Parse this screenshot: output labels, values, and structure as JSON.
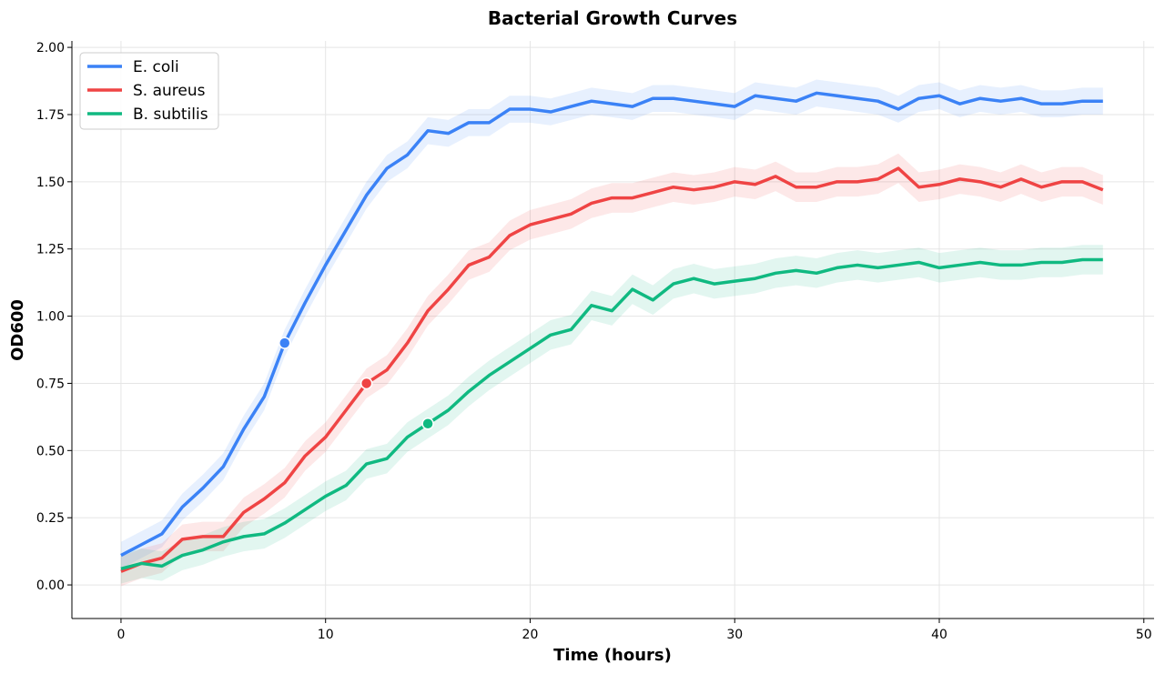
{
  "chart_data": {
    "type": "line",
    "title": "Bacterial Growth Curves",
    "xlabel": "Time (hours)",
    "ylabel": "OD600",
    "xlim": [
      -2.4,
      50.5
    ],
    "ylim": [
      -0.125,
      2.024
    ],
    "xticks": [
      0,
      10,
      20,
      30,
      40,
      50
    ],
    "xtick_labels": [
      "0",
      "10",
      "20",
      "30",
      "40",
      "50"
    ],
    "yticks": [
      0,
      0.25,
      0.5,
      0.75,
      1.0,
      1.25,
      1.5,
      1.75,
      2.0
    ],
    "ytick_labels": [
      "0.00",
      "0.25",
      "0.50",
      "0.75",
      "1.00",
      "1.25",
      "1.50",
      "1.75",
      "2.00"
    ],
    "grid": true,
    "legend_position": "top-left",
    "x": [
      0,
      1,
      2,
      3,
      4,
      5,
      6,
      7,
      8,
      9,
      10,
      11,
      12,
      13,
      14,
      15,
      16,
      17,
      18,
      19,
      20,
      21,
      22,
      23,
      24,
      25,
      26,
      27,
      28,
      29,
      30,
      31,
      32,
      33,
      34,
      35,
      36,
      37,
      38,
      39,
      40,
      41,
      42,
      43,
      44,
      45,
      46,
      47,
      48
    ],
    "series": [
      {
        "name": "E. coli",
        "color": "#3b82f6",
        "ci_halfwidth": 0.05,
        "values": [
          0.11,
          0.15,
          0.19,
          0.29,
          0.36,
          0.44,
          0.58,
          0.7,
          0.9,
          1.05,
          1.19,
          1.32,
          1.45,
          1.55,
          1.6,
          1.69,
          1.68,
          1.72,
          1.72,
          1.77,
          1.77,
          1.76,
          1.78,
          1.8,
          1.79,
          1.78,
          1.81,
          1.81,
          1.8,
          1.79,
          1.78,
          1.82,
          1.81,
          1.8,
          1.83,
          1.82,
          1.81,
          1.8,
          1.77,
          1.81,
          1.82,
          1.79,
          1.81,
          1.8,
          1.81,
          1.79,
          1.79,
          1.8,
          1.8
        ],
        "marker": {
          "x": 8,
          "y": 0.9
        }
      },
      {
        "name": "S. aureus",
        "color": "#ef4444",
        "ci_halfwidth": 0.055,
        "values": [
          0.05,
          0.08,
          0.1,
          0.17,
          0.18,
          0.18,
          0.27,
          0.32,
          0.38,
          0.48,
          0.55,
          0.65,
          0.75,
          0.8,
          0.9,
          1.02,
          1.1,
          1.19,
          1.22,
          1.3,
          1.34,
          1.36,
          1.38,
          1.42,
          1.44,
          1.44,
          1.46,
          1.48,
          1.47,
          1.48,
          1.5,
          1.49,
          1.52,
          1.48,
          1.48,
          1.5,
          1.5,
          1.51,
          1.55,
          1.48,
          1.49,
          1.51,
          1.5,
          1.48,
          1.51,
          1.48,
          1.5,
          1.5,
          1.47
        ],
        "marker": {
          "x": 12,
          "y": 0.75
        }
      },
      {
        "name": "B. subtilis",
        "color": "#10b981",
        "ci_halfwidth": 0.055,
        "values": [
          0.06,
          0.08,
          0.07,
          0.11,
          0.13,
          0.16,
          0.18,
          0.19,
          0.23,
          0.28,
          0.33,
          0.37,
          0.45,
          0.47,
          0.55,
          0.6,
          0.65,
          0.72,
          0.78,
          0.83,
          0.88,
          0.93,
          0.95,
          1.04,
          1.02,
          1.1,
          1.06,
          1.12,
          1.14,
          1.12,
          1.13,
          1.14,
          1.16,
          1.17,
          1.16,
          1.18,
          1.19,
          1.18,
          1.19,
          1.2,
          1.18,
          1.19,
          1.2,
          1.19,
          1.19,
          1.2,
          1.2,
          1.21,
          1.21
        ],
        "marker": {
          "x": 15,
          "y": 0.6
        }
      }
    ]
  }
}
